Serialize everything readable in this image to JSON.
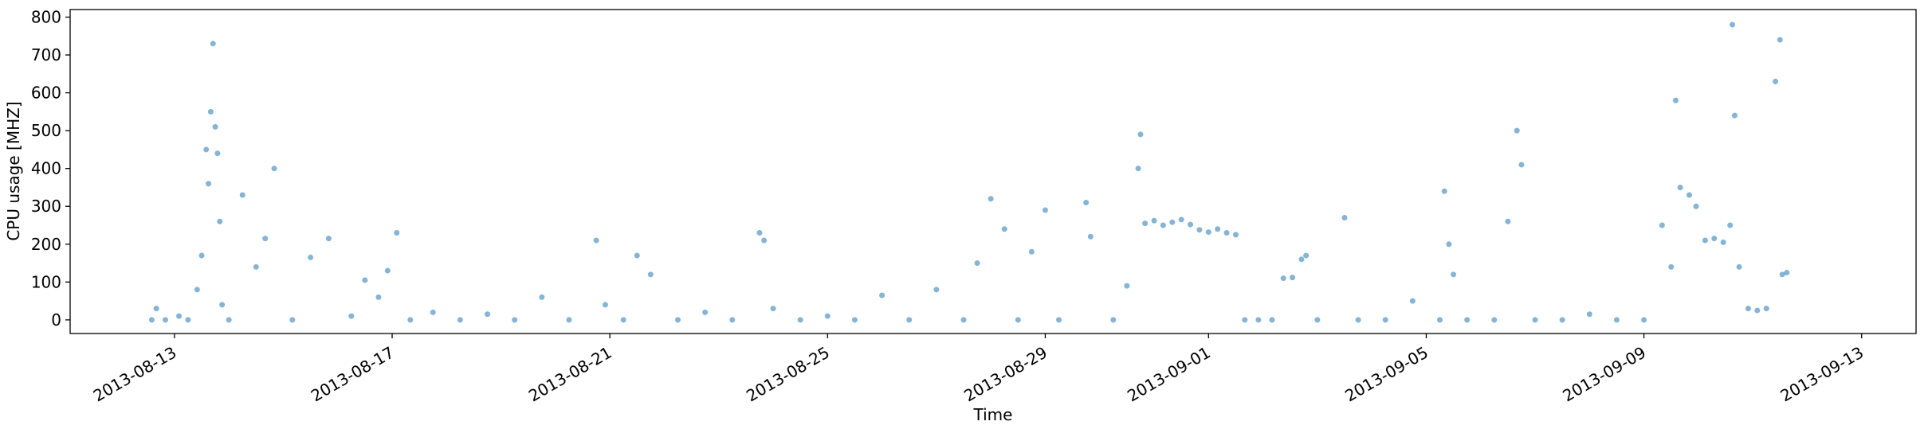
{
  "chart_data": {
    "type": "scatter",
    "x_label": "Time",
    "y_label": "CPU usage [MHZ]",
    "xlim": [
      "2013-08-11 02:00",
      "2013-09-14 00:00"
    ],
    "xticks": [
      "2013-08-13",
      "2013-08-17",
      "2013-08-21",
      "2013-08-25",
      "2013-08-29",
      "2013-09-01",
      "2013-09-05",
      "2013-09-09",
      "2013-09-13"
    ],
    "ylim": [
      -36,
      820
    ],
    "yticks": [
      0,
      100,
      200,
      300,
      400,
      500,
      600,
      700,
      800
    ],
    "x": [
      "2013-08-12 14:00",
      "2013-08-12 16:00",
      "2013-08-12 20:00",
      "2013-08-13 02:00",
      "2013-08-13 06:00",
      "2013-08-13 10:00",
      "2013-08-13 12:00",
      "2013-08-13 14:00",
      "2013-08-13 15:00",
      "2013-08-13 16:00",
      "2013-08-13 17:00",
      "2013-08-13 18:00",
      "2013-08-13 19:00",
      "2013-08-13 20:00",
      "2013-08-13 21:00",
      "2013-08-14 00:00",
      "2013-08-14 06:00",
      "2013-08-14 12:00",
      "2013-08-14 16:00",
      "2013-08-14 20:00",
      "2013-08-15 04:00",
      "2013-08-15 12:00",
      "2013-08-15 20:00",
      "2013-08-16 06:00",
      "2013-08-16 12:00",
      "2013-08-16 18:00",
      "2013-08-16 22:00",
      "2013-08-17 02:00",
      "2013-08-17 08:00",
      "2013-08-17 18:00",
      "2013-08-18 06:00",
      "2013-08-18 18:00",
      "2013-08-19 06:00",
      "2013-08-19 18:00",
      "2013-08-20 06:00",
      "2013-08-20 18:00",
      "2013-08-20 22:00",
      "2013-08-21 06:00",
      "2013-08-21 12:00",
      "2013-08-21 18:00",
      "2013-08-22 06:00",
      "2013-08-22 18:00",
      "2013-08-23 06:00",
      "2013-08-23 18:00",
      "2013-08-23 20:00",
      "2013-08-24 00:00",
      "2013-08-24 12:00",
      "2013-08-25 00:00",
      "2013-08-25 12:00",
      "2013-08-26 00:00",
      "2013-08-26 12:00",
      "2013-08-27 00:00",
      "2013-08-27 12:00",
      "2013-08-27 18:00",
      "2013-08-28 00:00",
      "2013-08-28 06:00",
      "2013-08-28 12:00",
      "2013-08-28 18:00",
      "2013-08-29 00:00",
      "2013-08-29 06:00",
      "2013-08-29 18:00",
      "2013-08-29 20:00",
      "2013-08-30 06:00",
      "2013-08-30 12:00",
      "2013-08-30 17:00",
      "2013-08-30 18:00",
      "2013-08-30 20:00",
      "2013-08-31 00:00",
      "2013-08-31 04:00",
      "2013-08-31 08:00",
      "2013-08-31 12:00",
      "2013-08-31 16:00",
      "2013-08-31 20:00",
      "2013-09-01 00:00",
      "2013-09-01 04:00",
      "2013-09-01 08:00",
      "2013-09-01 12:00",
      "2013-09-01 16:00",
      "2013-09-01 22:00",
      "2013-09-02 04:00",
      "2013-09-02 09:00",
      "2013-09-02 13:00",
      "2013-09-02 17:00",
      "2013-09-02 19:00",
      "2013-09-03 00:00",
      "2013-09-03 12:00",
      "2013-09-03 18:00",
      "2013-09-04 06:00",
      "2013-09-04 18:00",
      "2013-09-05 06:00",
      "2013-09-05 08:00",
      "2013-09-05 10:00",
      "2013-09-05 12:00",
      "2013-09-05 18:00",
      "2013-09-06 06:00",
      "2013-09-06 12:00",
      "2013-09-06 16:00",
      "2013-09-06 18:00",
      "2013-09-07 00:00",
      "2013-09-07 12:00",
      "2013-09-08 00:00",
      "2013-09-08 12:00",
      "2013-09-09 00:00",
      "2013-09-09 08:00",
      "2013-09-09 12:00",
      "2013-09-09 14:00",
      "2013-09-09 16:00",
      "2013-09-09 20:00",
      "2013-09-09 23:00",
      "2013-09-10 03:00",
      "2013-09-10 07:00",
      "2013-09-10 11:00",
      "2013-09-10 14:00",
      "2013-09-10 15:00",
      "2013-09-10 16:00",
      "2013-09-10 18:00",
      "2013-09-10 22:00",
      "2013-09-11 02:00",
      "2013-09-11 06:00",
      "2013-09-11 10:00",
      "2013-09-11 12:00",
      "2013-09-11 13:00",
      "2013-09-11 15:00"
    ],
    "series": [
      {
        "color": "#1f77b4",
        "values": [
          0,
          30,
          0,
          10,
          0,
          80,
          170,
          450,
          360,
          550,
          730,
          510,
          440,
          260,
          40,
          0,
          330,
          140,
          215,
          400,
          0,
          165,
          215,
          10,
          105,
          60,
          130,
          230,
          0,
          20,
          0,
          15,
          0,
          60,
          0,
          210,
          40,
          0,
          170,
          120,
          0,
          20,
          0,
          230,
          210,
          30,
          0,
          10,
          0,
          65,
          0,
          80,
          0,
          150,
          320,
          240,
          0,
          180,
          290,
          0,
          310,
          220,
          0,
          90,
          400,
          490,
          255,
          262,
          250,
          258,
          265,
          252,
          238,
          232,
          240,
          230,
          225,
          0,
          0,
          0,
          110,
          112,
          160,
          170,
          0,
          270,
          0,
          0,
          50,
          0,
          340,
          200,
          120,
          0,
          0,
          260,
          500,
          410,
          0,
          0,
          15,
          0,
          0,
          250,
          140,
          580,
          350,
          330,
          300,
          210,
          215,
          205,
          250,
          780,
          540,
          140,
          30,
          25,
          30,
          630,
          740,
          120,
          125
        ]
      }
    ]
  }
}
